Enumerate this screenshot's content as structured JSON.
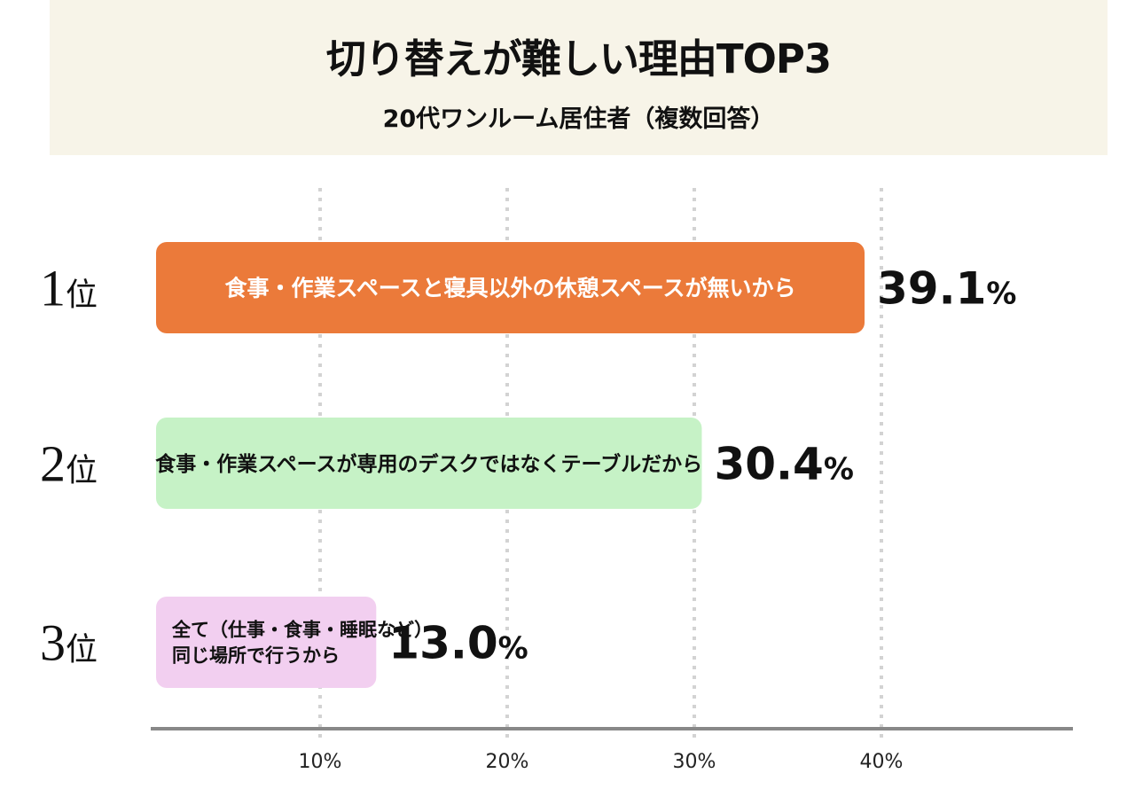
{
  "chart_data": {
    "type": "bar",
    "orientation": "horizontal",
    "title": "切り替えが難しい理由TOP3",
    "subtitle": "20代ワンルーム居住者（複数回答）",
    "unit": "%",
    "rank_suffix": "位",
    "xlim": [
      0,
      40
    ],
    "xticks": [
      10,
      20,
      30,
      40
    ],
    "xtick_labels": [
      "10%",
      "20%",
      "30%",
      "40%"
    ],
    "grid": "vertical dotted",
    "bars": [
      {
        "rank": "1",
        "label_lines": [
          "食事・作業スペースと寝具以外の休憩スペースが無いから"
        ],
        "value": 39.1,
        "value_text": "39.1",
        "color": "#eb7a3a",
        "text_color": "#ffffff"
      },
      {
        "rank": "2",
        "label_lines": [
          "食事・作業スペースが専用のデスクではなくテーブルだから"
        ],
        "value": 30.4,
        "value_text": "30.4",
        "color": "#c6f2c6",
        "text_color": "#111111"
      },
      {
        "rank": "3",
        "label_lines": [
          "全て（仕事・食事・睡眠など）",
          "同じ場所で行うから"
        ],
        "value": 13.0,
        "value_text": "13.0",
        "color": "#f2cff0",
        "text_color": "#111111"
      }
    ]
  }
}
